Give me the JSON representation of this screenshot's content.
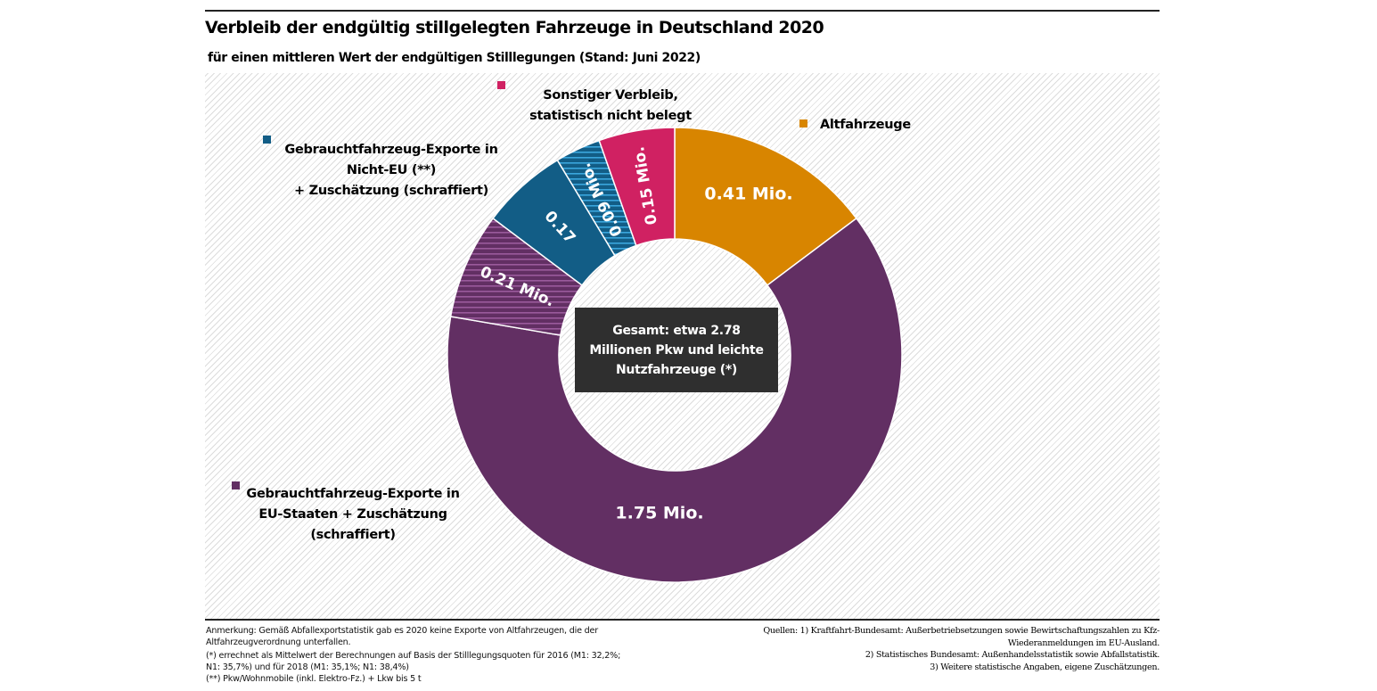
{
  "header": {
    "title": "Verbleib der endgültig stillgelegten Fahrzeuge in Deutschland 2020",
    "subtitle": "für einen mittleren Wert der endgültigen Stilllegungen (Stand: Juni 2022)"
  },
  "center": {
    "lines": [
      "Gesamt: etwa 2.78",
      "Millionen Pkw und leichte",
      "Nutzfahrzeuge (*)"
    ]
  },
  "legend": {
    "sonstiger": [
      "Sonstiger Verbleib,",
      "statistisch nicht belegt"
    ],
    "altfahrzeuge": [
      "Altfahrzeuge"
    ],
    "nicht_eu": [
      "Gebrauchtfahrzeug-Exporte in",
      "Nicht-EU (**)",
      "+ Zuschätzung (schraffiert)"
    ],
    "eu": [
      "Gebrauchtfahrzeug-Exporte in",
      "EU-Staaten + Zuschätzung",
      "(schraffiert)"
    ]
  },
  "notes": {
    "left": [
      "Anmerkung: Gemäß Abfallexportstatistik gab es 2020 keine Exporte von Altfahrzeugen, die der Altfahrzeugverordnung unterfallen.",
      "(*) errechnet als Mittelwert der Berechnungen auf Basis der Stilllegungsquoten für 2016 (M1: 32,2%; N1: 35,7%) und für 2018 (M1: 35,1%; N1: 38,4%)",
      "(**) Pkw/Wohnmobile (inkl. Elektro-Fz.) + Lkw bis 5 t"
    ],
    "right": [
      "Quellen: 1) Kraftfahrt-Bundesamt: Außerbetriebsetzungen sowie Bewirtschaftungszahlen zu Kfz-",
      "Wiederanmeldungen im EU-Ausland.",
      "2) Statistisches Bundesamt: Außenhandelsstatistik sowie Abfallstatistik.",
      "3) Weitere statistische Angaben, eigene Zuschätzungen."
    ]
  },
  "chart_data": {
    "type": "pie",
    "variant": "donut",
    "title": "Verbleib der endgültig stillgelegten Fahrzeuge in Deutschland 2020",
    "subtitle": "für einen mittleren Wert der endgültigen Stilllegungen (Stand: Juni 2022)",
    "unit": "Mio.",
    "total": 2.78,
    "start": "top",
    "direction": "clockwise",
    "slices": [
      {
        "name": "Altfahrzeuge",
        "value": 0.41,
        "label": "0.41 Mio.",
        "color": "#d88500",
        "hatched": false
      },
      {
        "name": "Gebrauchtfahrzeug-Exporte in EU-Staaten",
        "value": 1.75,
        "label": "1.75 Mio.",
        "color": "#622f63",
        "hatched": false
      },
      {
        "name": "Gebrauchtfahrzeug-Exporte in EU-Staaten – Zuschätzung",
        "value": 0.21,
        "label": "0.21 Mio.",
        "color": "#622f63",
        "hatched": true,
        "hatch_color": "#9a5a9c"
      },
      {
        "name": "Gebrauchtfahrzeug-Exporte in Nicht-EU",
        "value": 0.17,
        "label": "0.17",
        "color": "#125d86",
        "hatched": false
      },
      {
        "name": "Gebrauchtfahrzeug-Exporte in Nicht-EU – Zuschätzung",
        "value": 0.09,
        "label": "0.09 Mio.",
        "color": "#125d86",
        "hatched": true,
        "hatch_color": "#3aa6dd"
      },
      {
        "name": "Sonstiger Verbleib, statistisch nicht belegt",
        "value": 0.15,
        "label": "0.15 Mio.",
        "color": "#d02162",
        "hatched": false
      }
    ]
  }
}
